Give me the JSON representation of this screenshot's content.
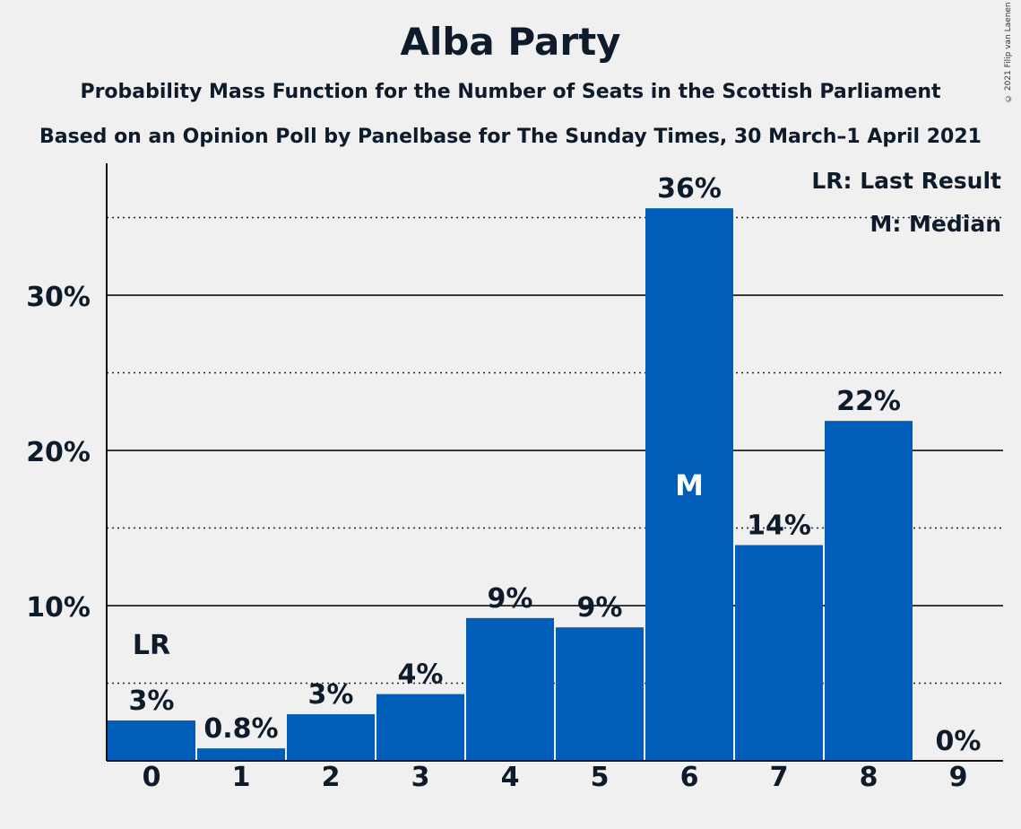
{
  "chart_data": {
    "type": "bar",
    "title": "Alba Party",
    "subtitle": "Probability Mass Function for the Number of Seats in the Scottish Parliament",
    "subtitle2": "Based on an Opinion Poll by Panelbase for The Sunday Times, 30 March–1 April 2021",
    "copyright": "© 2021 Filip van Laenen",
    "categories": [
      "0",
      "1",
      "2",
      "3",
      "4",
      "5",
      "6",
      "7",
      "8",
      "9"
    ],
    "values": [
      2.6,
      0.8,
      3.0,
      4.3,
      9.2,
      8.6,
      35.6,
      13.9,
      21.9,
      0
    ],
    "value_labels": [
      "3%",
      "0.8%",
      "3%",
      "4%",
      "9%",
      "9%",
      "36%",
      "14%",
      "22%",
      "0%"
    ],
    "ylim": [
      0,
      38.5
    ],
    "yticks": [
      10,
      20,
      30
    ],
    "ytick_labels": [
      "10%",
      "20%",
      "30%"
    ],
    "minor_gridlines": [
      5,
      15,
      25,
      35
    ],
    "bar_color": "#005eb8",
    "last_result_index": 0,
    "last_result_label": "LR",
    "median_index": 6,
    "median_label": "M",
    "legend": [
      "LR: Last Result",
      "M: Median"
    ],
    "legend_position": "top-right"
  }
}
